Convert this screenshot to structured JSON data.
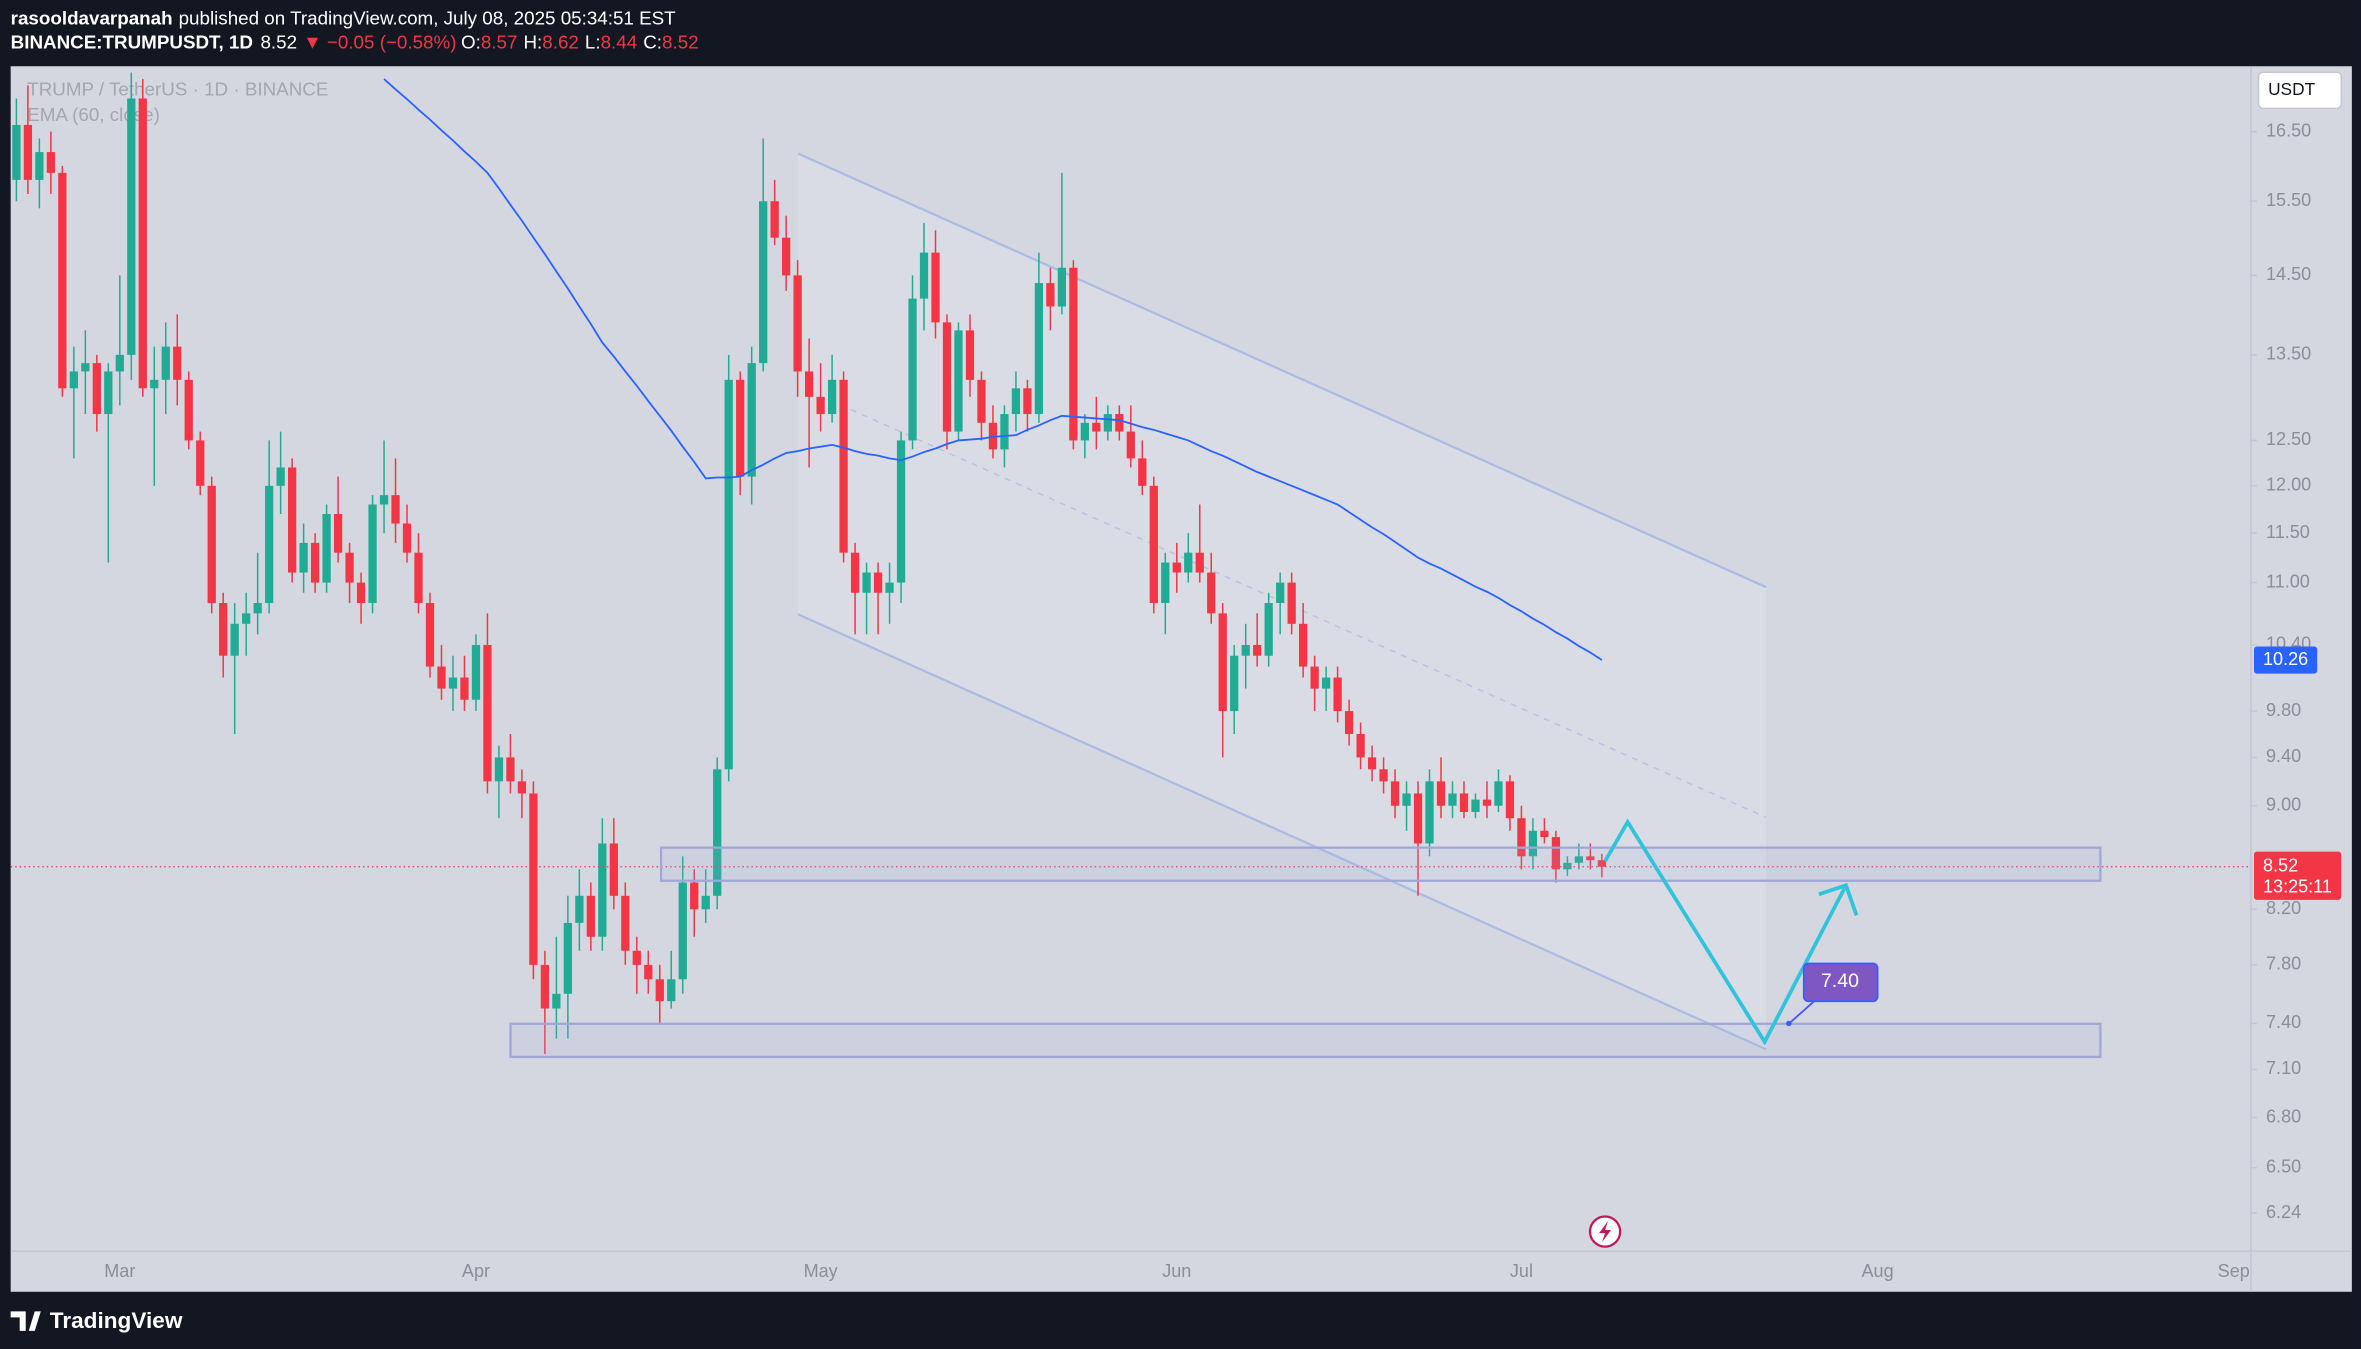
{
  "header": {
    "author": "rasooldavarpanah",
    "published": "published on TradingView.com, July 08, 2025 05:34:51 EST",
    "symbol": "BINANCE:TRUMPUSDT, 1D",
    "price": "8.52",
    "change": "▼ −0.05 (−0.58%)",
    "quote": [
      "O:",
      "8.57",
      "H:",
      "8.62",
      "L:",
      "8.44",
      "C:",
      "8.52"
    ]
  },
  "footer": {
    "brand": "TradingView"
  },
  "chart_data": {
    "type": "candlestick",
    "symbol_legend": "TRUMP / TetherUS · 1D · BINANCE",
    "currency": "USDT",
    "log_scale": true,
    "grid": false,
    "up_color": "#22ab94",
    "down_color": "#f23645",
    "ylim": [
      6.03,
      17.5
    ],
    "yticks": [
      {
        "value": 16.5,
        "label": "16.50"
      },
      {
        "value": 15.5,
        "label": "15.50"
      },
      {
        "value": 14.5,
        "label": "14.50"
      },
      {
        "value": 13.5,
        "label": "13.50"
      },
      {
        "value": 12.5,
        "label": "12.50"
      },
      {
        "value": 12,
        "label": "12.00"
      },
      {
        "value": 11.5,
        "label": "11.50"
      },
      {
        "value": 11,
        "label": "11.00"
      },
      {
        "value": 10.4,
        "label": "10.40"
      },
      {
        "value": 9.8,
        "label": "9.80"
      },
      {
        "value": 9.4,
        "label": "9.40"
      },
      {
        "value": 9,
        "label": "9.00"
      },
      {
        "value": 8.2,
        "label": "8.20"
      },
      {
        "value": 7.8,
        "label": "7.80"
      },
      {
        "value": 7.4,
        "label": "7.40"
      },
      {
        "value": 7.1,
        "label": "7.10"
      },
      {
        "value": 6.8,
        "label": "6.80"
      },
      {
        "value": 6.5,
        "label": "6.50"
      },
      6.24
    ],
    "categories": [
      null,
      null,
      null,
      null,
      null,
      null,
      null,
      null,
      null,
      "Mar",
      null,
      null,
      null,
      null,
      null,
      null,
      null,
      null,
      null,
      null,
      null,
      null,
      null,
      null,
      null,
      null,
      null,
      null,
      null,
      null,
      null,
      null,
      null,
      null,
      null,
      null,
      null,
      null,
      null,
      null,
      "Apr",
      null,
      null,
      null,
      null,
      null,
      null,
      null,
      null,
      null,
      null,
      null,
      null,
      null,
      null,
      null,
      null,
      null,
      null,
      null,
      null,
      null,
      null,
      null,
      null,
      null,
      null,
      null,
      null,
      null,
      "May",
      null,
      null,
      null,
      null,
      null,
      null,
      null,
      null,
      null,
      null,
      null,
      null,
      null,
      null,
      null,
      null,
      null,
      null,
      null,
      null,
      null,
      null,
      null,
      null,
      null,
      null,
      null,
      null,
      null,
      null,
      "Jun",
      null,
      null,
      null,
      null,
      null,
      null,
      null,
      null,
      null,
      null,
      null,
      null,
      null,
      null,
      null,
      null,
      null,
      null,
      null,
      null,
      null,
      null,
      null,
      null,
      null,
      null,
      null,
      null,
      null,
      "Jul",
      null,
      null,
      null,
      null,
      null,
      null,
      null,
      null,
      null,
      null,
      null,
      null,
      null,
      null,
      null,
      null,
      null,
      null,
      null,
      null,
      null,
      null,
      null,
      null,
      null,
      null,
      null,
      null,
      null,
      null,
      "Aug",
      null,
      null,
      null,
      null,
      null,
      null,
      null,
      null,
      null,
      null,
      null,
      null,
      null,
      null,
      null,
      null,
      null,
      null,
      null,
      null,
      null,
      null,
      null,
      null,
      null,
      null,
      null,
      null,
      null,
      null,
      "Sep",
      null
    ],
    "ohlc": [
      [
        15.8,
        17.0,
        15.5,
        16.6
      ],
      [
        16.6,
        17.2,
        15.6,
        15.8
      ],
      [
        15.8,
        16.4,
        15.4,
        16.2
      ],
      [
        16.2,
        16.5,
        15.6,
        15.9
      ],
      [
        15.9,
        16.0,
        13.0,
        13.1
      ],
      [
        13.1,
        13.6,
        12.3,
        13.3
      ],
      [
        13.3,
        13.8,
        12.8,
        13.4
      ],
      [
        13.4,
        13.5,
        12.6,
        12.8
      ],
      [
        12.8,
        13.4,
        11.2,
        13.3
      ],
      [
        13.3,
        14.5,
        12.9,
        13.5
      ],
      [
        13.5,
        17.4,
        13.2,
        17.0
      ],
      [
        17.0,
        17.3,
        13.0,
        13.1
      ],
      [
        13.1,
        13.6,
        12.0,
        13.2
      ],
      [
        13.2,
        13.9,
        12.8,
        13.6
      ],
      [
        13.6,
        14.0,
        12.9,
        13.2
      ],
      [
        13.2,
        13.3,
        12.4,
        12.5
      ],
      [
        12.5,
        12.6,
        11.9,
        12.0
      ],
      [
        12.0,
        12.1,
        10.7,
        10.8
      ],
      [
        10.8,
        10.9,
        10.1,
        10.3
      ],
      [
        10.3,
        10.8,
        9.6,
        10.6
      ],
      [
        10.6,
        10.9,
        10.3,
        10.7
      ],
      [
        10.7,
        11.3,
        10.5,
        10.8
      ],
      [
        10.8,
        12.5,
        10.7,
        12.0
      ],
      [
        12.0,
        12.6,
        11.7,
        12.2
      ],
      [
        12.2,
        12.3,
        11.0,
        11.1
      ],
      [
        11.1,
        11.6,
        10.9,
        11.4
      ],
      [
        11.4,
        11.5,
        10.9,
        11.0
      ],
      [
        11.0,
        11.8,
        10.9,
        11.7
      ],
      [
        11.7,
        12.1,
        11.2,
        11.3
      ],
      [
        11.3,
        11.4,
        10.8,
        11.0
      ],
      [
        11.0,
        11.1,
        10.6,
        10.8
      ],
      [
        10.8,
        11.9,
        10.7,
        11.8
      ],
      [
        11.8,
        12.5,
        11.5,
        11.9
      ],
      [
        11.9,
        12.3,
        11.4,
        11.6
      ],
      [
        11.6,
        11.8,
        11.2,
        11.3
      ],
      [
        11.3,
        11.5,
        10.7,
        10.8
      ],
      [
        10.8,
        10.9,
        10.1,
        10.2
      ],
      [
        10.2,
        10.4,
        9.9,
        10.0
      ],
      [
        10.0,
        10.3,
        9.8,
        10.1
      ],
      [
        10.1,
        10.3,
        9.8,
        9.9
      ],
      [
        9.9,
        10.5,
        9.8,
        10.4
      ],
      [
        10.4,
        10.7,
        9.1,
        9.2
      ],
      [
        9.2,
        9.5,
        8.9,
        9.4
      ],
      [
        9.4,
        9.6,
        9.1,
        9.2
      ],
      [
        9.2,
        9.3,
        8.9,
        9.1
      ],
      [
        9.1,
        9.2,
        7.7,
        7.8
      ],
      [
        7.8,
        7.9,
        7.2,
        7.5
      ],
      [
        7.5,
        8.0,
        7.3,
        7.6
      ],
      [
        7.6,
        8.3,
        7.3,
        8.1
      ],
      [
        8.1,
        8.5,
        7.9,
        8.3
      ],
      [
        8.3,
        8.4,
        7.9,
        8.0
      ],
      [
        8.0,
        8.9,
        7.9,
        8.7
      ],
      [
        8.7,
        8.9,
        8.2,
        8.3
      ],
      [
        8.3,
        8.4,
        7.8,
        7.9
      ],
      [
        7.9,
        8.0,
        7.6,
        7.8
      ],
      [
        7.8,
        7.9,
        7.6,
        7.7
      ],
      [
        7.7,
        7.8,
        7.4,
        7.55
      ],
      [
        7.55,
        7.9,
        7.5,
        7.7
      ],
      [
        7.7,
        8.6,
        7.6,
        8.4
      ],
      [
        8.4,
        8.5,
        8.0,
        8.2
      ],
      [
        8.2,
        8.5,
        8.1,
        8.3
      ],
      [
        8.3,
        9.4,
        8.2,
        9.3
      ],
      [
        9.3,
        13.5,
        9.2,
        13.2
      ],
      [
        13.2,
        13.3,
        11.9,
        12.1
      ],
      [
        12.1,
        13.6,
        11.8,
        13.4
      ],
      [
        13.4,
        16.4,
        13.3,
        15.5
      ],
      [
        15.5,
        15.8,
        14.9,
        15.0
      ],
      [
        15.0,
        15.3,
        14.3,
        14.5
      ],
      [
        14.5,
        14.7,
        13.0,
        13.3
      ],
      [
        13.3,
        13.7,
        12.2,
        13.0
      ],
      [
        13.0,
        13.4,
        12.6,
        12.8
      ],
      [
        12.8,
        13.5,
        12.7,
        13.2
      ],
      [
        13.2,
        13.3,
        11.2,
        11.3
      ],
      [
        11.3,
        11.4,
        10.5,
        10.9
      ],
      [
        10.9,
        11.2,
        10.5,
        11.1
      ],
      [
        11.1,
        11.2,
        10.5,
        10.9
      ],
      [
        10.9,
        11.2,
        10.6,
        11.0
      ],
      [
        11.0,
        12.6,
        10.8,
        12.5
      ],
      [
        12.5,
        14.5,
        12.4,
        14.2
      ],
      [
        14.2,
        15.2,
        13.8,
        14.8
      ],
      [
        14.8,
        15.1,
        13.7,
        13.9
      ],
      [
        13.9,
        14.0,
        12.4,
        12.6
      ],
      [
        12.6,
        13.9,
        12.5,
        13.8
      ],
      [
        13.8,
        14.0,
        13.0,
        13.2
      ],
      [
        13.2,
        13.3,
        12.5,
        12.7
      ],
      [
        12.7,
        12.9,
        12.3,
        12.4
      ],
      [
        12.4,
        12.9,
        12.2,
        12.8
      ],
      [
        12.8,
        13.3,
        12.6,
        13.1
      ],
      [
        13.1,
        13.2,
        12.6,
        12.8
      ],
      [
        12.8,
        14.8,
        12.7,
        14.4
      ],
      [
        14.4,
        14.6,
        13.8,
        14.1
      ],
      [
        14.1,
        15.9,
        14.0,
        14.6
      ],
      [
        14.6,
        14.7,
        12.4,
        12.5
      ],
      [
        12.5,
        12.8,
        12.3,
        12.7
      ],
      [
        12.7,
        13.0,
        12.4,
        12.6
      ],
      [
        12.6,
        12.9,
        12.5,
        12.8
      ],
      [
        12.8,
        12.9,
        12.5,
        12.6
      ],
      [
        12.6,
        12.9,
        12.2,
        12.3
      ],
      [
        12.3,
        12.5,
        11.9,
        12.0
      ],
      [
        12.0,
        12.1,
        10.7,
        10.8
      ],
      [
        10.8,
        11.3,
        10.5,
        11.2
      ],
      [
        11.2,
        11.4,
        10.9,
        11.1
      ],
      [
        11.1,
        11.5,
        11.0,
        11.3
      ],
      [
        11.3,
        11.8,
        11.0,
        11.1
      ],
      [
        11.1,
        11.3,
        10.6,
        10.7
      ],
      [
        10.7,
        10.8,
        9.4,
        9.8
      ],
      [
        9.8,
        10.4,
        9.6,
        10.3
      ],
      [
        10.3,
        10.6,
        10.0,
        10.4
      ],
      [
        10.4,
        10.7,
        10.2,
        10.3
      ],
      [
        10.3,
        10.9,
        10.2,
        10.8
      ],
      [
        10.8,
        11.1,
        10.5,
        11.0
      ],
      [
        11.0,
        11.1,
        10.5,
        10.6
      ],
      [
        10.6,
        10.8,
        10.1,
        10.2
      ],
      [
        10.2,
        10.3,
        9.8,
        10.0
      ],
      [
        10.0,
        10.2,
        9.8,
        10.1
      ],
      [
        10.1,
        10.2,
        9.7,
        9.8
      ],
      [
        9.8,
        9.9,
        9.5,
        9.6
      ],
      [
        9.6,
        9.7,
        9.3,
        9.4
      ],
      [
        9.4,
        9.5,
        9.2,
        9.3
      ],
      [
        9.3,
        9.4,
        9.1,
        9.2
      ],
      [
        9.2,
        9.3,
        8.9,
        9.0
      ],
      [
        9.0,
        9.2,
        8.8,
        9.1
      ],
      [
        9.1,
        9.2,
        8.3,
        8.7
      ],
      [
        8.7,
        9.3,
        8.6,
        9.2
      ],
      [
        9.2,
        9.4,
        8.9,
        9.0
      ],
      [
        9.0,
        9.2,
        8.9,
        9.1
      ],
      [
        9.1,
        9.2,
        8.9,
        8.95
      ],
      [
        8.95,
        9.1,
        8.9,
        9.05
      ],
      [
        9.05,
        9.2,
        8.9,
        9.0
      ],
      [
        9.0,
        9.3,
        8.95,
        9.2
      ],
      [
        9.2,
        9.25,
        8.8,
        8.9
      ],
      [
        8.9,
        9.0,
        8.5,
        8.6
      ],
      [
        8.6,
        8.9,
        8.5,
        8.8
      ],
      [
        8.8,
        8.9,
        8.7,
        8.75
      ],
      [
        8.75,
        8.8,
        8.4,
        8.5
      ],
      [
        8.5,
        8.6,
        8.45,
        8.55
      ],
      [
        8.55,
        8.7,
        8.5,
        8.6
      ],
      [
        8.6,
        8.7,
        8.5,
        8.57
      ],
      [
        8.57,
        8.62,
        8.44,
        8.52
      ],
      null,
      null,
      null,
      null,
      null,
      null,
      null,
      null,
      null,
      null,
      null,
      null,
      null,
      null,
      null,
      null,
      null,
      null,
      null,
      null,
      null,
      null,
      null,
      null,
      null,
      null,
      null,
      null,
      null,
      null,
      null,
      null,
      null,
      null,
      null,
      null,
      null,
      null,
      null,
      null,
      null,
      null,
      null,
      null,
      null,
      null,
      null,
      null,
      null,
      null,
      null,
      null,
      null,
      null,
      null,
      null
    ],
    "series": [
      {
        "name": "EMA (60, close)",
        "color": "#2962ff",
        "values": [
          null,
          null,
          null,
          null,
          null,
          null,
          null,
          null,
          null,
          null,
          null,
          null,
          null,
          null,
          null,
          null,
          null,
          null,
          null,
          null,
          null,
          null,
          null,
          null,
          null,
          null,
          null,
          null,
          null,
          null,
          null,
          null,
          17.3,
          17.14,
          16.99,
          16.83,
          16.68,
          16.52,
          16.37,
          16.21,
          16.06,
          15.9,
          15.68,
          15.45,
          15.23,
          15.0,
          14.78,
          14.55,
          14.33,
          14.1,
          13.88,
          13.65,
          13.48,
          13.3,
          13.13,
          12.95,
          12.78,
          12.61,
          12.43,
          12.26,
          12.08,
          12.09,
          12.09,
          12.1,
          12.17,
          12.23,
          12.3,
          12.36,
          12.38,
          12.41,
          12.43,
          12.45,
          12.42,
          12.38,
          12.35,
          12.33,
          12.3,
          12.28,
          12.32,
          12.37,
          12.41,
          12.46,
          12.5,
          12.51,
          12.52,
          12.54,
          12.55,
          12.56,
          12.62,
          12.67,
          12.73,
          12.78,
          12.77,
          12.76,
          12.75,
          12.74,
          12.73,
          12.69,
          12.65,
          12.62,
          12.58,
          12.54,
          12.5,
          12.44,
          12.38,
          12.33,
          12.27,
          12.21,
          12.15,
          12.1,
          12.05,
          12.0,
          11.95,
          11.9,
          11.85,
          11.8,
          11.72,
          11.64,
          11.56,
          11.49,
          11.41,
          11.33,
          11.25,
          11.19,
          11.14,
          11.08,
          11.02,
          10.96,
          10.91,
          10.85,
          10.78,
          10.72,
          10.65,
          10.59,
          10.52,
          10.46,
          10.39,
          10.33,
          10.26,
          null,
          null,
          null,
          null,
          null,
          null,
          null,
          null,
          null,
          null,
          null,
          null,
          null,
          null,
          null,
          null,
          null,
          null,
          null,
          null,
          null,
          null,
          null,
          null,
          null,
          null,
          null,
          null,
          null,
          null,
          null,
          null,
          null,
          null,
          null,
          null,
          null,
          null,
          null,
          null,
          null,
          null,
          null,
          null,
          null,
          null,
          null,
          null,
          null,
          null,
          null,
          null,
          null,
          null,
          null,
          null
        ]
      }
    ],
    "ema_last": 10.26,
    "last_price": 8.52,
    "countdown": "13:25:11",
    "target_label": {
      "value": 7.4,
      "label": "7.40"
    }
  }
}
